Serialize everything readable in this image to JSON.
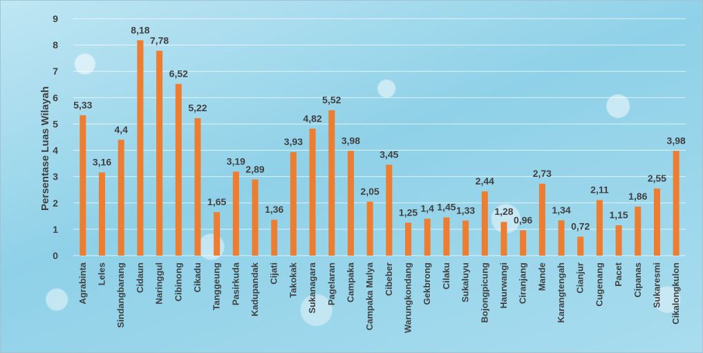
{
  "chart_data": {
    "type": "bar",
    "title": "",
    "xlabel": "",
    "ylabel": "Persentase Luas Wilayah",
    "ylim": [
      0,
      9
    ],
    "yticks": [
      "0",
      "1",
      "2",
      "3",
      "4",
      "5",
      "6",
      "7",
      "8",
      "9"
    ],
    "grid": true,
    "bar_color": "#ED7D31",
    "categories": [
      "Agrabinta",
      "Leles",
      "Sindangbarang",
      "Cidaun",
      "Naringgul",
      "Cibinong",
      "Cikadu",
      "Tanggeung",
      "Pasirkuda",
      "Kadupandak",
      "Cijati",
      "Takokak",
      "Sukanagara",
      "Pagelaran",
      "Campaka",
      "Campaka Mulya",
      "Cibeber",
      "Warungkondang",
      "Gekbrong",
      "Cilaku",
      "Sukaluyu",
      "Bojongpicung",
      "Haurwangi",
      "Ciranjang",
      "Mande",
      "Karangtengah",
      "Cianjur",
      "Cugenang",
      "Pacet",
      "Cipanas",
      "Sukaresmi",
      "Cikalongkulon"
    ],
    "values": [
      5.33,
      3.16,
      4.4,
      8.18,
      7.78,
      6.52,
      5.22,
      1.65,
      3.19,
      2.89,
      1.36,
      3.93,
      4.82,
      5.52,
      3.98,
      2.05,
      3.45,
      1.25,
      1.4,
      1.45,
      1.33,
      2.44,
      1.28,
      0.96,
      2.73,
      1.34,
      0.72,
      2.11,
      1.15,
      1.86,
      2.55,
      3.98
    ],
    "data_labels": [
      "5,33",
      "3,16",
      "4,4",
      "8,18",
      "7,78",
      "6,52",
      "5,22",
      "1,65",
      "3,19",
      "2,89",
      "1,36",
      "3,93",
      "4,82",
      "5,52",
      "3,98",
      "2,05",
      "3,45",
      "1,25",
      "1,4",
      "1,45",
      "1,33",
      "2,44",
      "1,28",
      "0,96",
      "2,73",
      "1,34",
      "0,72",
      "2,11",
      "1,15",
      "1,86",
      "2,55",
      "3,98"
    ]
  }
}
